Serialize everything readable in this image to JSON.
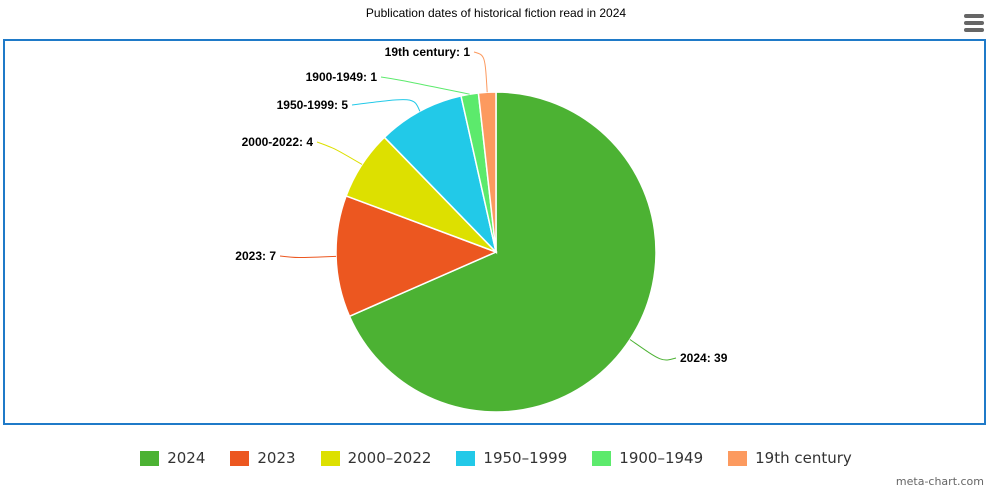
{
  "chart_data": {
    "type": "pie",
    "title": "Publication dates of historical fiction read in 2024",
    "legend_position": "bottom",
    "series": [
      {
        "name": "2024",
        "value": 39,
        "label": "2024: 39",
        "color": "#4cb233"
      },
      {
        "name": "2023",
        "value": 7,
        "label": "2023: 7",
        "color": "#ec5720"
      },
      {
        "name": "2000-2022",
        "value": 4,
        "label": "2000-2022: 4",
        "color": "#dde000"
      },
      {
        "name": "1950-1999",
        "value": 5,
        "label": "1950-1999: 5",
        "color": "#22c9e8"
      },
      {
        "name": "1900-1949",
        "value": 1,
        "label": "1900-1949: 1",
        "color": "#5cea6c"
      },
      {
        "name": "19th century",
        "value": 1,
        "label": "19th century: 1",
        "color": "#fc9a5f"
      }
    ]
  },
  "legend_items": [
    "2024",
    "2023",
    "2000–2022",
    "1950–1999",
    "1900–1949",
    "19th century"
  ],
  "menu_icon": "hamburger-menu-icon",
  "credit": "meta-chart.com"
}
